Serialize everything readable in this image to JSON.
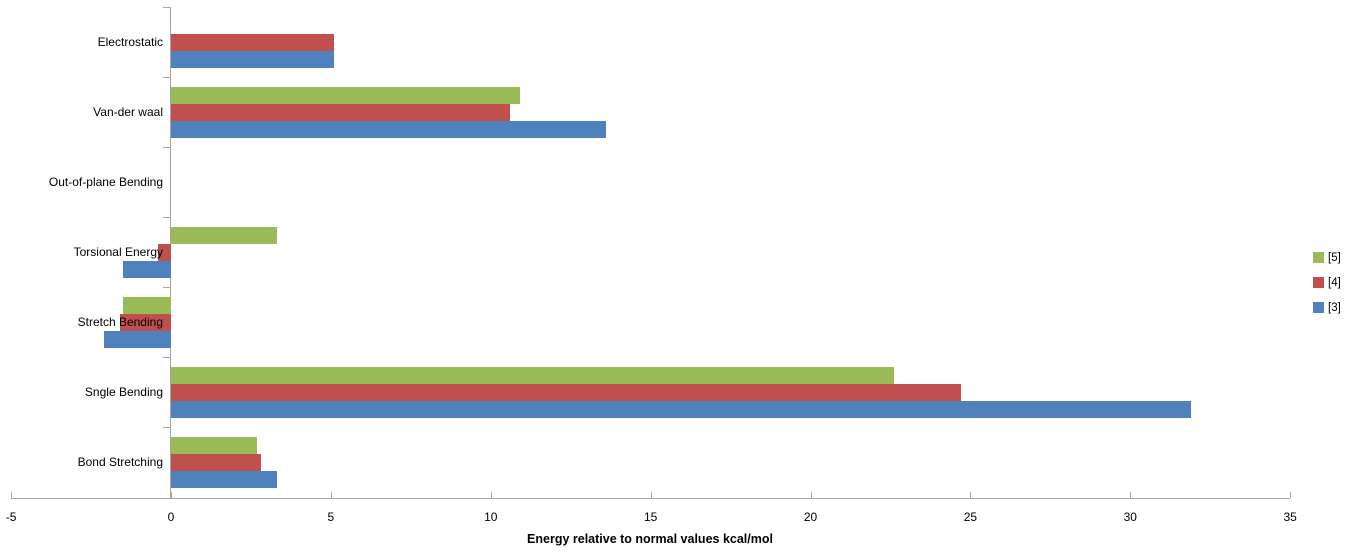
{
  "chart_data": {
    "type": "bar",
    "orientation": "horizontal",
    "title": "",
    "xlabel": "Energy relative to normal values kcal/mol",
    "ylabel": "",
    "categories": [
      "Electrostatic",
      "Van-der waal",
      "Out-of-plane Bending",
      "Torsional Energy",
      "Stretch Bending",
      "Sngle Bending",
      "Bond Stretching"
    ],
    "series": [
      {
        "name": "[5]",
        "color": "#9bbb59",
        "values": [
          0,
          10.9,
          0,
          3.3,
          -1.5,
          22.6,
          2.7
        ]
      },
      {
        "name": "[4]",
        "color": "#c0504d",
        "values": [
          5.1,
          10.6,
          0,
          -0.4,
          -1.6,
          24.7,
          2.8
        ]
      },
      {
        "name": "[3]",
        "color": "#4f81bd",
        "values": [
          5.1,
          13.6,
          0,
          -1.5,
          -2.1,
          31.9,
          3.3
        ]
      }
    ],
    "x_ticks": [
      -5,
      0,
      5,
      10,
      15,
      20,
      25,
      30,
      35
    ],
    "xlim": [
      -5,
      35
    ],
    "grid": false,
    "legend_position": "right",
    "legend_order": [
      "[5]",
      "[4]",
      "[3]"
    ]
  },
  "colors": {
    "axis": "#a6a6a6",
    "text": "#000000",
    "background": "#ffffff",
    "series_green": "#9bbb59",
    "series_red": "#c0504d",
    "series_blue": "#4f81bd"
  }
}
